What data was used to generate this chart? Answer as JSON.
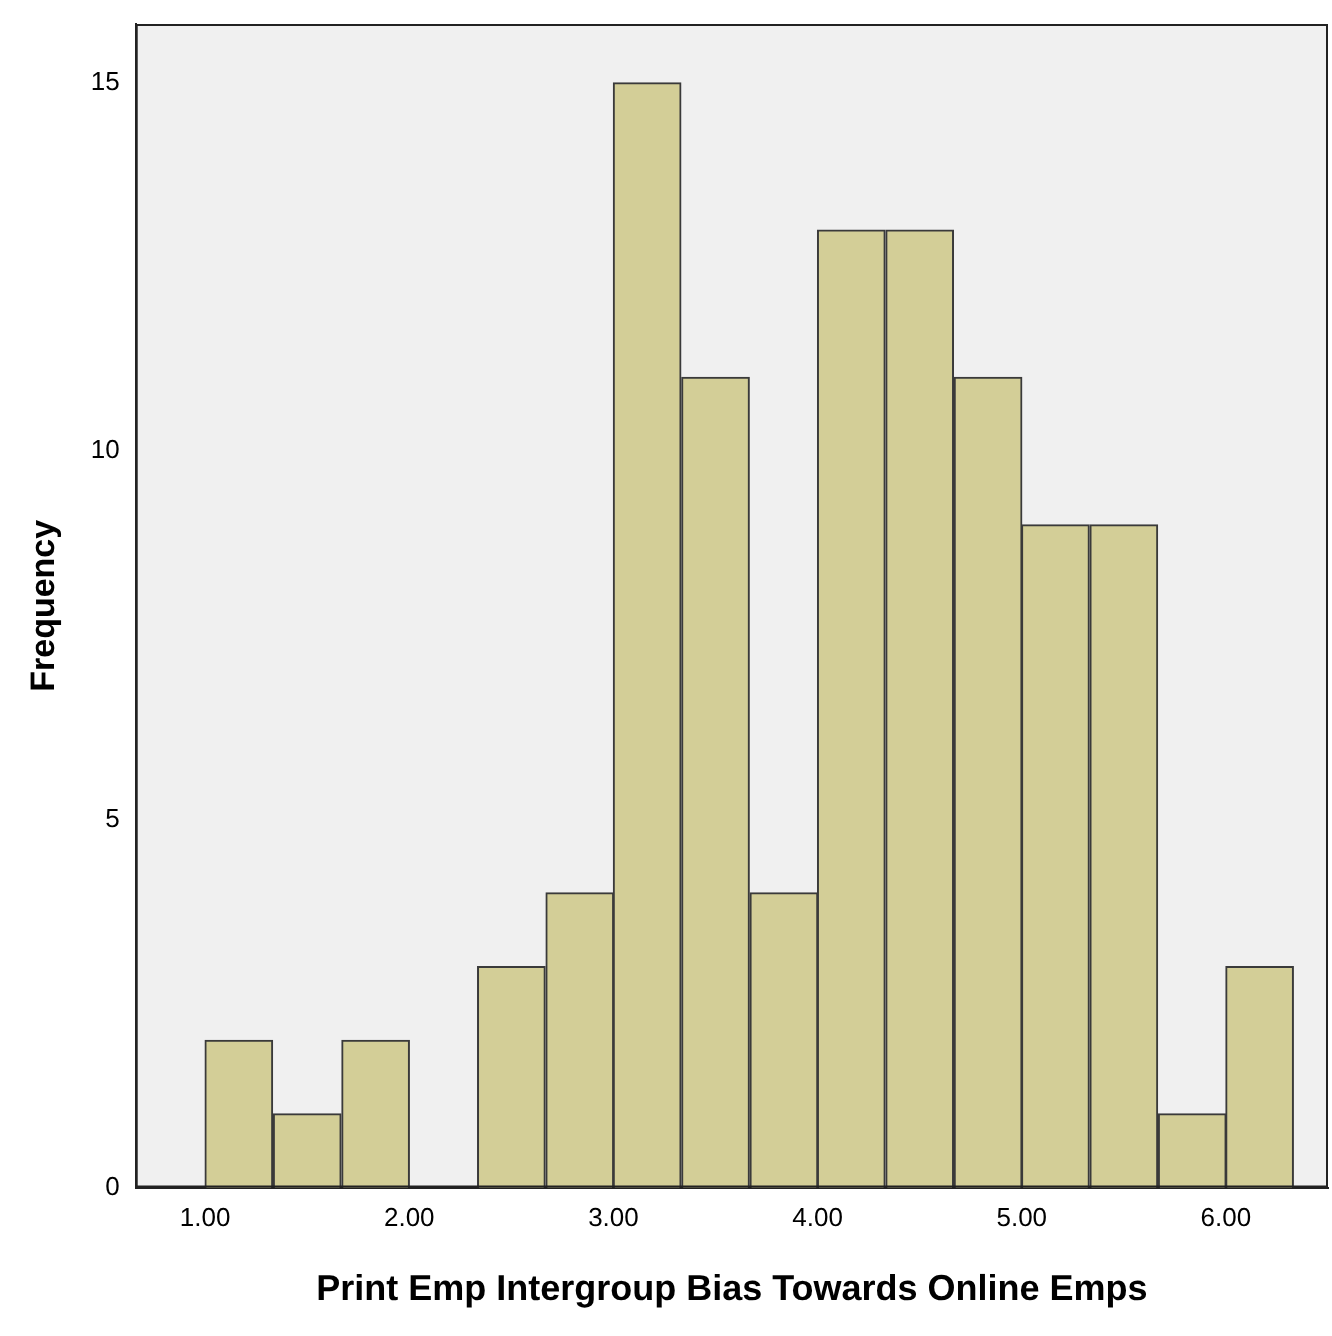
{
  "chart_data": {
    "type": "histogram",
    "xlabel": "Print Emp Intergroup Bias Towards Online Emps",
    "ylabel": "Frequency",
    "bins": [
      1,
      1.33,
      1.67,
      2,
      2.33,
      2.67,
      3,
      3.33,
      3.67,
      4,
      4.33,
      4.67,
      5,
      5.33,
      5.67,
      6,
      6.33
    ],
    "values": [
      2,
      1,
      2,
      0,
      3,
      4,
      15,
      11,
      4,
      13,
      13,
      11,
      9,
      9,
      1,
      3
    ],
    "color": "#d3ce97",
    "xlim": [
      0.66,
      6.5
    ],
    "xticks": [
      {
        "value": 1,
        "label": "1.00"
      },
      {
        "value": 2,
        "label": "2.00"
      },
      {
        "value": 3,
        "label": "3.00"
      },
      {
        "value": 4,
        "label": "4.00"
      },
      {
        "value": 5,
        "label": "5.00"
      },
      {
        "value": 6,
        "label": "6.00"
      }
    ],
    "ylim": [
      0,
      15.8
    ],
    "yticks": [
      0,
      5,
      10,
      15
    ],
    "grid": false,
    "legend": false
  }
}
